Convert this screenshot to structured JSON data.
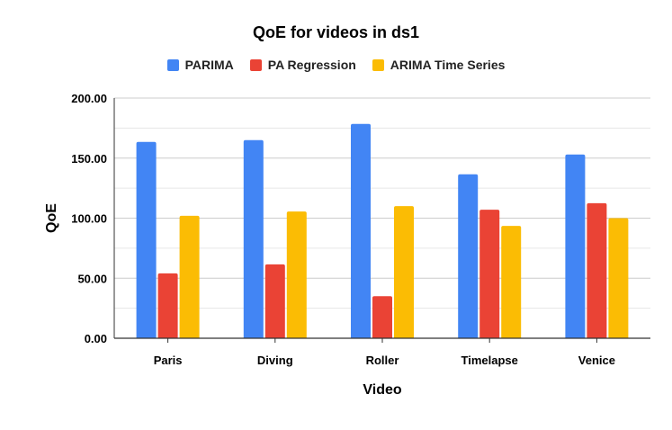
{
  "chart_data": {
    "type": "bar",
    "title": "QoE for videos in ds1",
    "xlabel": "Video",
    "ylabel": "QoE",
    "categories": [
      "Paris",
      "Diving",
      "Roller",
      "Timelapse",
      "Venice"
    ],
    "series": [
      {
        "name": "PARIMA",
        "color": "#4285f4",
        "values": [
          163.5,
          165,
          178.5,
          136.5,
          153
        ]
      },
      {
        "name": "PA Regression",
        "color": "#ea4335",
        "values": [
          54,
          61.5,
          35,
          107,
          112.5
        ]
      },
      {
        "name": "ARIMA Time Series",
        "color": "#fbbc04",
        "values": [
          102,
          105.5,
          110,
          93.5,
          100
        ]
      }
    ],
    "ylim": [
      0,
      200
    ],
    "yticks": [
      "0.00",
      "50.00",
      "100.00",
      "150.00",
      "200.00"
    ],
    "grid": true,
    "legend_position": "top"
  }
}
